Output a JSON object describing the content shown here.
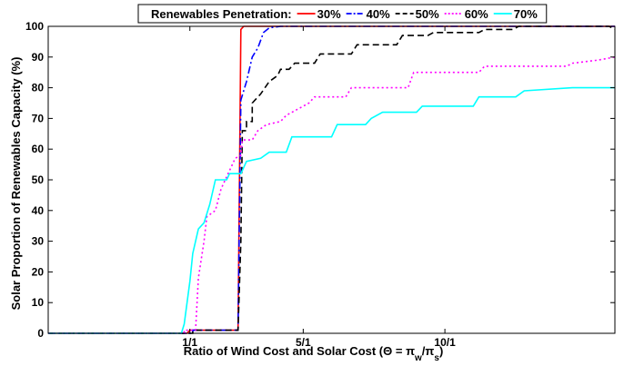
{
  "chart_data": {
    "type": "line",
    "title": "",
    "xlabel": "Ratio of Wind Cost and Solar Cost (Θ = π_w/π_s)",
    "xlabel_parts": {
      "prefix": "Ratio of Wind Cost and Solar Cost (Θ = π",
      "sub_w": "w",
      "mid": "/π",
      "sub_s": "s",
      "suffix": ")"
    },
    "ylabel": "Solar Proportion of Renewables Capacity (%)",
    "xlim": [
      -5,
      15
    ],
    "ylim": [
      0,
      100
    ],
    "x_ticks": [
      {
        "value": 0,
        "label": "1/1"
      },
      {
        "value": 4,
        "label": "5/1"
      },
      {
        "value": 9,
        "label": "10/1"
      }
    ],
    "y_ticks": [
      0,
      10,
      20,
      30,
      40,
      50,
      60,
      70,
      80,
      90,
      100
    ],
    "grid": false,
    "legend": {
      "title": "Renewables Penetration:",
      "placement": "top-center",
      "items": [
        {
          "label": "30%",
          "color": "#ff0000",
          "dash": "solid"
        },
        {
          "label": "40%",
          "color": "#0000ff",
          "dash": "dashdot"
        },
        {
          "label": "50%",
          "color": "#000000",
          "dash": "dashed"
        },
        {
          "label": "60%",
          "color": "#ff00ff",
          "dash": "dotted"
        },
        {
          "label": "70%",
          "color": "#00ffff",
          "dash": "solid"
        }
      ]
    },
    "series": [
      {
        "name": "30%",
        "points": [
          [
            -5,
            0
          ],
          [
            -0.1,
            0
          ],
          [
            0,
            1
          ],
          [
            1.7,
            1
          ],
          [
            1.8,
            99
          ],
          [
            1.9,
            100
          ],
          [
            15,
            100
          ]
        ]
      },
      {
        "name": "40%",
        "points": [
          [
            -5,
            0
          ],
          [
            0.1,
            0
          ],
          [
            0.1,
            1
          ],
          [
            1.7,
            1
          ],
          [
            1.8,
            76
          ],
          [
            2.0,
            82
          ],
          [
            2.2,
            90
          ],
          [
            2.4,
            93
          ],
          [
            2.6,
            98
          ],
          [
            2.8,
            99.5
          ],
          [
            3.2,
            100
          ],
          [
            15,
            100
          ]
        ]
      },
      {
        "name": "50%",
        "points": [
          [
            -5,
            0
          ],
          [
            0.1,
            0
          ],
          [
            0.1,
            1
          ],
          [
            1.7,
            1
          ],
          [
            1.8,
            30
          ],
          [
            1.85,
            66
          ],
          [
            2.0,
            66
          ],
          [
            2.0,
            69
          ],
          [
            2.2,
            69
          ],
          [
            2.2,
            75
          ],
          [
            2.5,
            78
          ],
          [
            2.8,
            82
          ],
          [
            3.1,
            84
          ],
          [
            3.2,
            86
          ],
          [
            3.5,
            86
          ],
          [
            3.7,
            88
          ],
          [
            4.4,
            88
          ],
          [
            4.6,
            91
          ],
          [
            5.7,
            91
          ],
          [
            5.9,
            94
          ],
          [
            7.3,
            94
          ],
          [
            7.5,
            97
          ],
          [
            8.4,
            97
          ],
          [
            8.6,
            98
          ],
          [
            10.2,
            98
          ],
          [
            10.4,
            99
          ],
          [
            11.4,
            99
          ],
          [
            11.6,
            100
          ],
          [
            14.8,
            100
          ],
          [
            15,
            99
          ]
        ]
      },
      {
        "name": "60%",
        "points": [
          [
            -5,
            0
          ],
          [
            -0.2,
            0
          ],
          [
            -0.2,
            1
          ],
          [
            0.2,
            1
          ],
          [
            0.3,
            18
          ],
          [
            0.5,
            30
          ],
          [
            0.6,
            38
          ],
          [
            0.9,
            40
          ],
          [
            1.1,
            47
          ],
          [
            1.3,
            51
          ],
          [
            1.6,
            57
          ],
          [
            1.8,
            58
          ],
          [
            1.85,
            63
          ],
          [
            2.2,
            63
          ],
          [
            2.4,
            66
          ],
          [
            2.7,
            68
          ],
          [
            3.2,
            69
          ],
          [
            3.4,
            71
          ],
          [
            3.8,
            73
          ],
          [
            4.2,
            75
          ],
          [
            4.4,
            77
          ],
          [
            5.5,
            77
          ],
          [
            5.7,
            80
          ],
          [
            7.7,
            80
          ],
          [
            7.9,
            85
          ],
          [
            10.2,
            85
          ],
          [
            10.4,
            87
          ],
          [
            13.3,
            87
          ],
          [
            13.5,
            88
          ],
          [
            14.4,
            89
          ],
          [
            15,
            90
          ]
        ]
      },
      {
        "name": "70%",
        "points": [
          [
            -5,
            0
          ],
          [
            -0.3,
            0
          ],
          [
            -0.2,
            3
          ],
          [
            0.0,
            17
          ],
          [
            0.1,
            26
          ],
          [
            0.3,
            34
          ],
          [
            0.5,
            36
          ],
          [
            0.7,
            42
          ],
          [
            0.9,
            50
          ],
          [
            1.3,
            50
          ],
          [
            1.4,
            52
          ],
          [
            1.8,
            52
          ],
          [
            2.0,
            56
          ],
          [
            2.5,
            57
          ],
          [
            2.8,
            59
          ],
          [
            3.4,
            59
          ],
          [
            3.6,
            64
          ],
          [
            5.0,
            64
          ],
          [
            5.2,
            68
          ],
          [
            6.2,
            68
          ],
          [
            6.4,
            70
          ],
          [
            6.8,
            72
          ],
          [
            8.0,
            72
          ],
          [
            8.2,
            74
          ],
          [
            10.0,
            74
          ],
          [
            10.2,
            77
          ],
          [
            11.5,
            77
          ],
          [
            11.8,
            79
          ],
          [
            13.5,
            80
          ],
          [
            15,
            80
          ]
        ]
      }
    ]
  }
}
